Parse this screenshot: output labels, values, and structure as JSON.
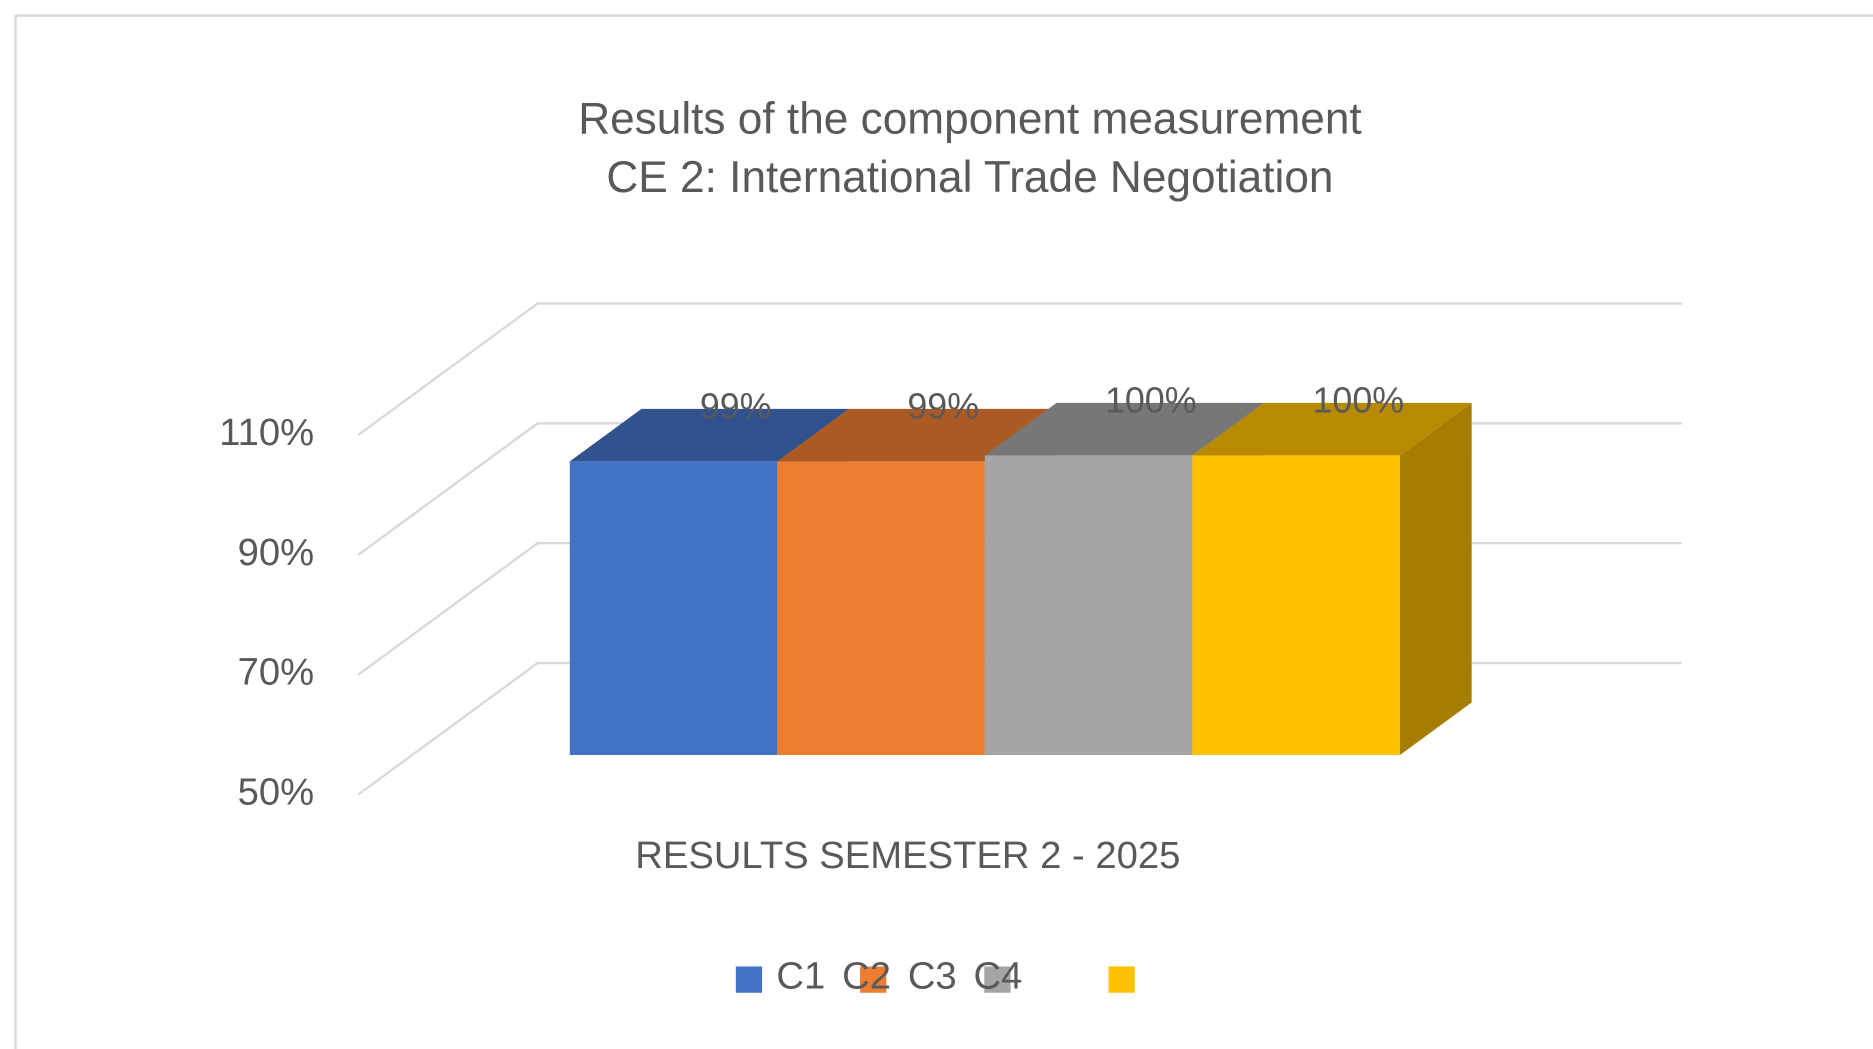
{
  "chart_data": {
    "type": "bar3d",
    "title": [
      "Results of the component measurement",
      "CE 2: International Trade Negotiation"
    ],
    "categories": [
      "RESULTS SEMESTER 2 - 2025"
    ],
    "series": [
      {
        "name": "C1",
        "color": "#4472c4",
        "values": [
          99
        ],
        "value_labels": [
          "99%"
        ]
      },
      {
        "name": "C2",
        "color": "#ed7d31",
        "values": [
          99
        ],
        "value_labels": [
          "99%"
        ]
      },
      {
        "name": "C3",
        "color": "#a5a5a5",
        "values": [
          100
        ],
        "value_labels": [
          "100%"
        ]
      },
      {
        "name": "C4",
        "color": "#ffc000",
        "values": [
          100
        ],
        "value_labels": [
          "100%"
        ]
      }
    ],
    "ylim": [
      50,
      110
    ],
    "yticks": [
      {
        "value": 50,
        "label": "50%"
      },
      {
        "value": 70,
        "label": "70%"
      },
      {
        "value": 90,
        "label": "90%"
      },
      {
        "value": 110,
        "label": "110%"
      }
    ],
    "grid": true,
    "legend": "bottom"
  }
}
